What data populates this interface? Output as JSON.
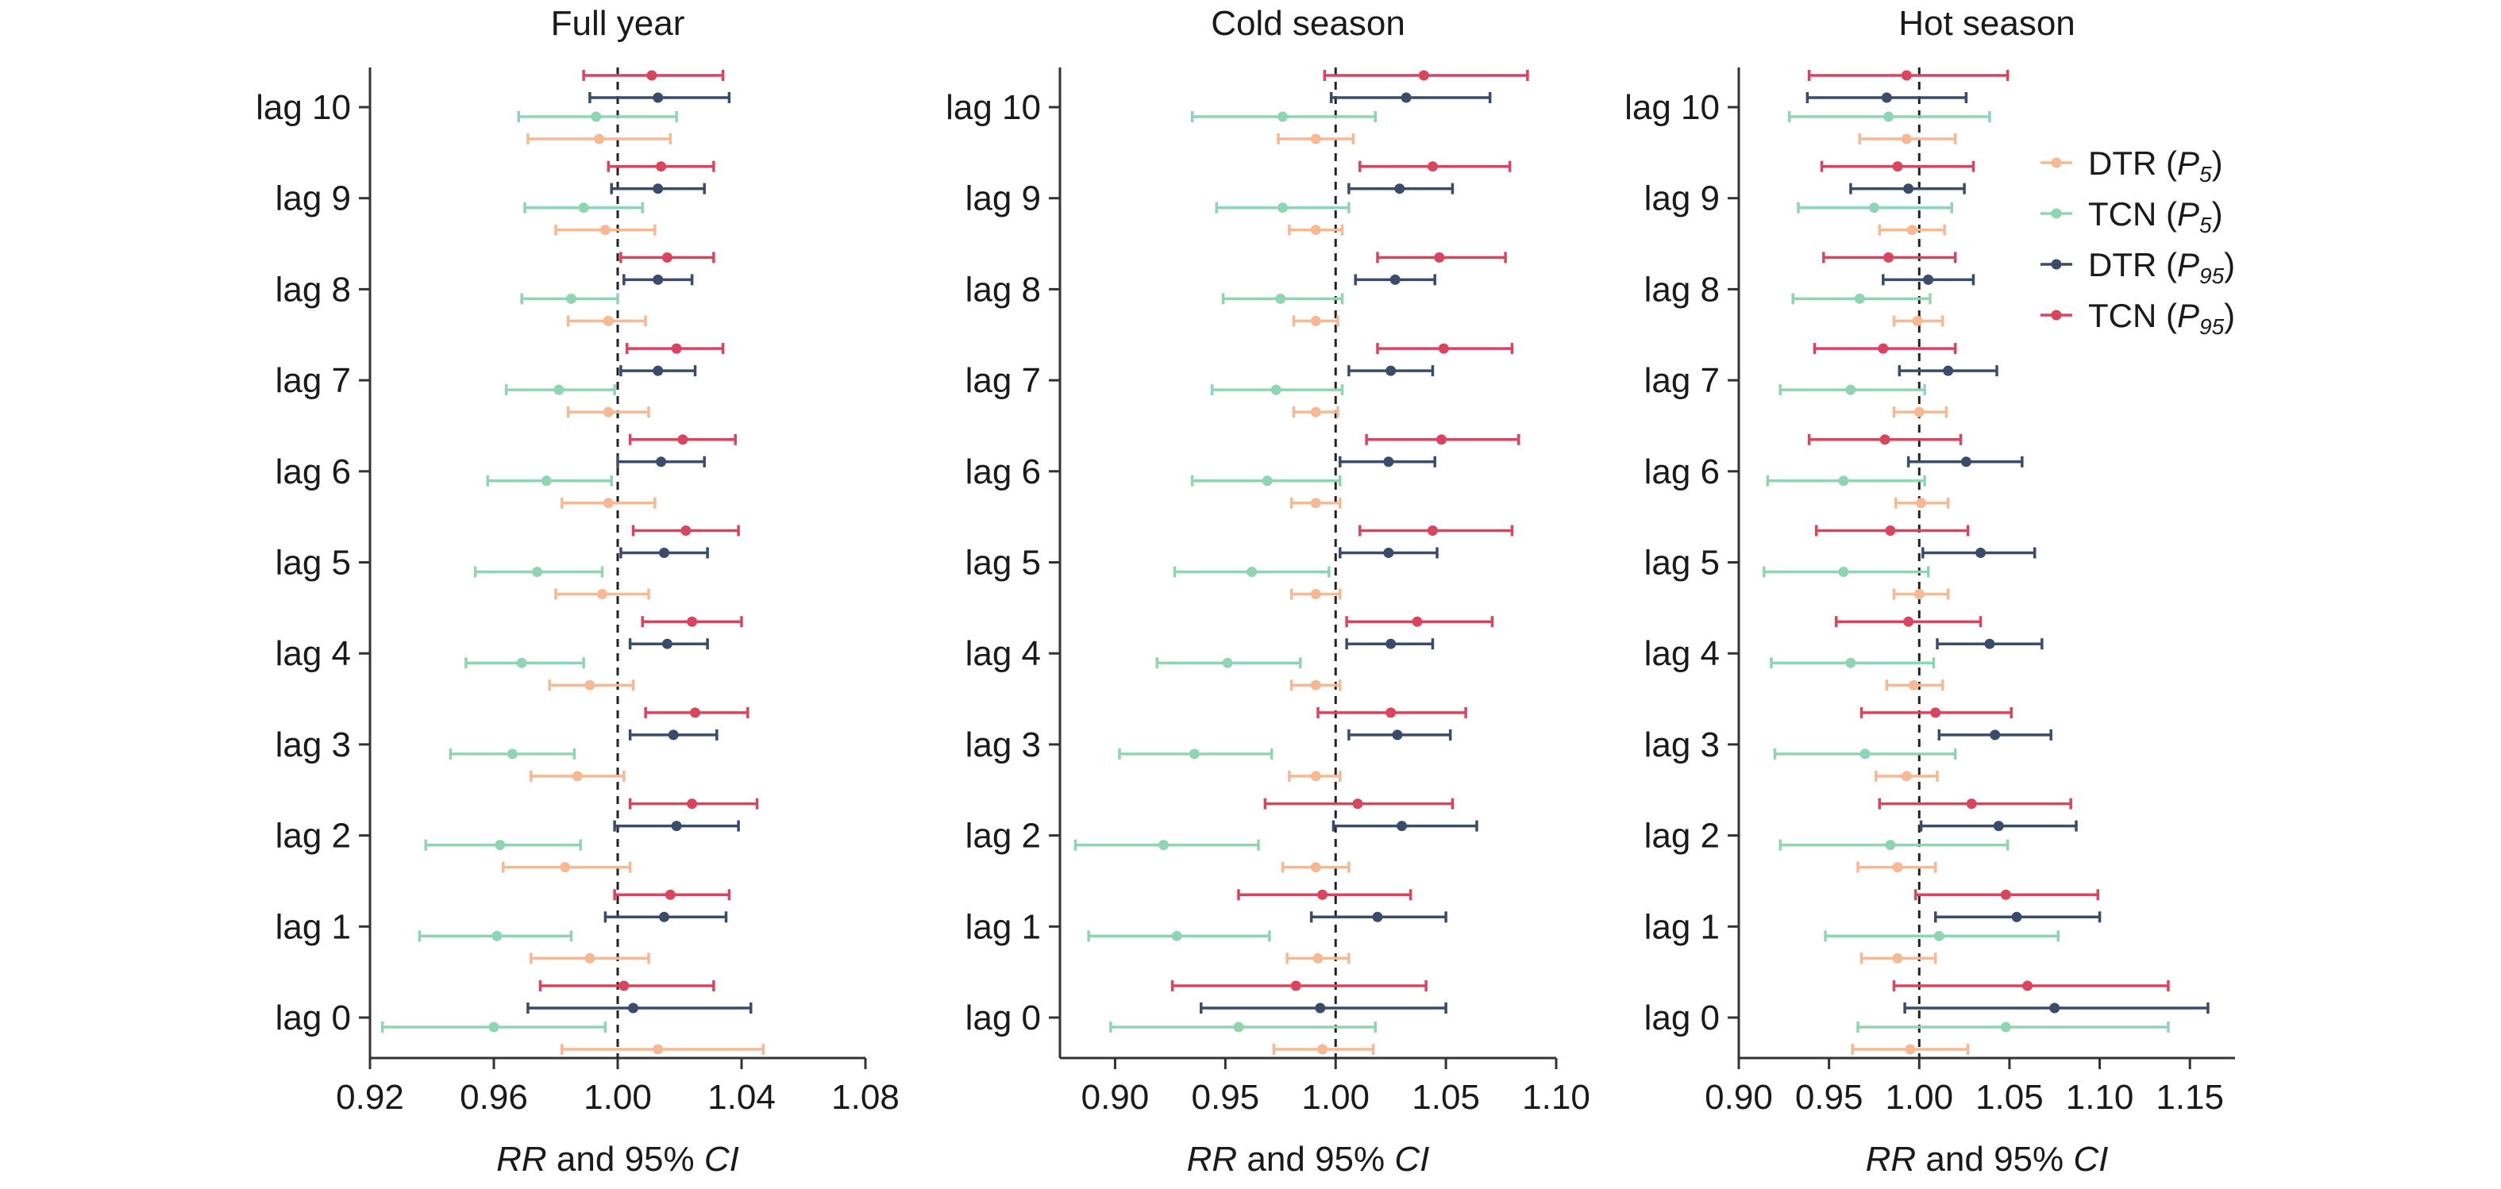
{
  "legend": {
    "placement": "right-of-last-panel",
    "entries": [
      {
        "key": "dtr_p5",
        "label": "DTR",
        "sub": "5",
        "color": "#f5b994"
      },
      {
        "key": "tcn_p5",
        "label": "TCN",
        "sub": "5",
        "color": "#8fd5b4"
      },
      {
        "key": "dtr_p95",
        "label": "DTR",
        "sub": "95",
        "color": "#3b4c6b"
      },
      {
        "key": "tcn_p95",
        "label": "TCN",
        "sub": "95",
        "color": "#d9445e"
      }
    ]
  },
  "axis_text": {
    "rr": "RR",
    "and": " and 95% ",
    "ci": "CI"
  },
  "chart_data": [
    {
      "type": "forest",
      "title": "Full year",
      "reference": 1.0,
      "xlim": [
        0.92,
        1.08
      ],
      "xticks": [
        0.92,
        0.96,
        1.0,
        1.04,
        1.08
      ],
      "tick_decimals": 2,
      "categories": [
        "lag 0",
        "lag 1",
        "lag 2",
        "lag 3",
        "lag 4",
        "lag 5",
        "lag 6",
        "lag 7",
        "lag 8",
        "lag 9",
        "lag 10"
      ],
      "series": [
        {
          "key": "dtr_p5",
          "est": [
            1.013,
            0.991,
            0.983,
            0.987,
            0.991,
            0.995,
            0.997,
            0.997,
            0.997,
            0.996,
            0.994
          ],
          "lo": [
            0.982,
            0.972,
            0.963,
            0.972,
            0.978,
            0.98,
            0.982,
            0.984,
            0.984,
            0.98,
            0.971
          ],
          "hi": [
            1.047,
            1.01,
            1.004,
            1.002,
            1.005,
            1.01,
            1.012,
            1.01,
            1.009,
            1.012,
            1.017
          ]
        },
        {
          "key": "tcn_p5",
          "est": [
            0.96,
            0.961,
            0.962,
            0.966,
            0.969,
            0.974,
            0.977,
            0.981,
            0.985,
            0.989,
            0.993
          ],
          "lo": [
            0.924,
            0.936,
            0.938,
            0.946,
            0.951,
            0.954,
            0.958,
            0.964,
            0.969,
            0.97,
            0.968
          ],
          "hi": [
            0.996,
            0.985,
            0.988,
            0.986,
            0.989,
            0.995,
            0.998,
            0.999,
            1.0,
            1.008,
            1.019
          ]
        },
        {
          "key": "dtr_p95",
          "est": [
            1.005,
            1.015,
            1.019,
            1.018,
            1.016,
            1.015,
            1.014,
            1.013,
            1.013,
            1.013,
            1.013
          ],
          "lo": [
            0.971,
            0.996,
            0.999,
            1.004,
            1.004,
            1.001,
            1.0,
            1.001,
            1.002,
            0.998,
            0.991
          ],
          "hi": [
            1.043,
            1.035,
            1.039,
            1.032,
            1.029,
            1.029,
            1.028,
            1.025,
            1.024,
            1.028,
            1.036
          ]
        },
        {
          "key": "tcn_p95",
          "est": [
            1.002,
            1.017,
            1.024,
            1.025,
            1.024,
            1.022,
            1.021,
            1.019,
            1.016,
            1.014,
            1.011
          ],
          "lo": [
            0.975,
            0.999,
            1.004,
            1.009,
            1.008,
            1.005,
            1.004,
            1.003,
            1.001,
            0.997,
            0.989
          ],
          "hi": [
            1.031,
            1.036,
            1.045,
            1.042,
            1.04,
            1.039,
            1.038,
            1.034,
            1.031,
            1.031,
            1.034
          ]
        }
      ]
    },
    {
      "type": "forest",
      "title": "Cold season",
      "reference": 1.0,
      "xlim": [
        0.875,
        1.1
      ],
      "xticks": [
        0.9,
        0.95,
        1.0,
        1.05,
        1.1
      ],
      "tick_decimals": 2,
      "categories": [
        "lag 0",
        "lag 1",
        "lag 2",
        "lag 3",
        "lag 4",
        "lag 5",
        "lag 6",
        "lag 7",
        "lag 8",
        "lag 9",
        "lag 10"
      ],
      "series": [
        {
          "key": "dtr_p5",
          "est": [
            0.994,
            0.992,
            0.991,
            0.991,
            0.991,
            0.991,
            0.991,
            0.991,
            0.991,
            0.991,
            0.991
          ],
          "lo": [
            0.972,
            0.978,
            0.976,
            0.979,
            0.98,
            0.98,
            0.98,
            0.981,
            0.981,
            0.979,
            0.974
          ],
          "hi": [
            1.017,
            1.006,
            1.006,
            1.002,
            1.002,
            1.002,
            1.002,
            1.001,
            1.001,
            1.003,
            1.008
          ]
        },
        {
          "key": "tcn_p5",
          "est": [
            0.956,
            0.928,
            0.922,
            0.936,
            0.951,
            0.962,
            0.969,
            0.973,
            0.975,
            0.976,
            0.976
          ],
          "lo": [
            0.898,
            0.888,
            0.882,
            0.902,
            0.919,
            0.927,
            0.935,
            0.944,
            0.949,
            0.946,
            0.935
          ],
          "hi": [
            1.018,
            0.97,
            0.965,
            0.971,
            0.984,
            0.997,
            1.002,
            1.003,
            1.003,
            1.006,
            1.018
          ]
        },
        {
          "key": "dtr_p95",
          "est": [
            0.993,
            1.019,
            1.03,
            1.028,
            1.025,
            1.024,
            1.024,
            1.025,
            1.027,
            1.029,
            1.032
          ],
          "lo": [
            0.939,
            0.989,
            0.999,
            1.006,
            1.005,
            1.002,
            1.002,
            1.006,
            1.009,
            1.006,
            0.998
          ],
          "hi": [
            1.05,
            1.05,
            1.064,
            1.052,
            1.044,
            1.046,
            1.045,
            1.044,
            1.045,
            1.053,
            1.07
          ]
        },
        {
          "key": "tcn_p95",
          "est": [
            0.982,
            0.994,
            1.01,
            1.025,
            1.037,
            1.044,
            1.048,
            1.049,
            1.047,
            1.044,
            1.04
          ],
          "lo": [
            0.926,
            0.956,
            0.968,
            0.992,
            1.005,
            1.011,
            1.014,
            1.019,
            1.019,
            1.011,
            0.995
          ],
          "hi": [
            1.041,
            1.034,
            1.053,
            1.059,
            1.071,
            1.08,
            1.083,
            1.08,
            1.077,
            1.079,
            1.087
          ]
        }
      ]
    },
    {
      "type": "forest",
      "title": "Hot season",
      "reference": 1.0,
      "xlim": [
        0.9,
        1.175
      ],
      "xticks": [
        0.9,
        0.95,
        1.0,
        1.05,
        1.1,
        1.15
      ],
      "tick_decimals": 2,
      "categories": [
        "lag 0",
        "lag 1",
        "lag 2",
        "lag 3",
        "lag 4",
        "lag 5",
        "lag 6",
        "lag 7",
        "lag 8",
        "lag 9",
        "lag 10"
      ],
      "series": [
        {
          "key": "dtr_p5",
          "est": [
            0.995,
            0.988,
            0.988,
            0.993,
            0.997,
            1.0,
            1.001,
            1.0,
            0.999,
            0.996,
            0.993
          ],
          "lo": [
            0.963,
            0.968,
            0.966,
            0.976,
            0.982,
            0.986,
            0.987,
            0.986,
            0.986,
            0.978,
            0.967
          ],
          "hi": [
            1.027,
            1.009,
            1.009,
            1.01,
            1.013,
            1.016,
            1.016,
            1.015,
            1.013,
            1.014,
            1.02
          ]
        },
        {
          "key": "tcn_p5",
          "est": [
            1.048,
            1.011,
            0.984,
            0.97,
            0.962,
            0.958,
            0.958,
            0.962,
            0.967,
            0.975,
            0.983
          ],
          "lo": [
            0.966,
            0.948,
            0.923,
            0.92,
            0.918,
            0.914,
            0.916,
            0.923,
            0.93,
            0.933,
            0.928
          ],
          "hi": [
            1.138,
            1.077,
            1.049,
            1.02,
            1.008,
            1.005,
            1.003,
            1.003,
            1.006,
            1.018,
            1.039
          ]
        },
        {
          "key": "dtr_p95",
          "est": [
            1.075,
            1.054,
            1.044,
            1.042,
            1.039,
            1.034,
            1.026,
            1.016,
            1.005,
            0.994,
            0.982
          ],
          "lo": [
            0.992,
            1.009,
            1.001,
            1.011,
            1.01,
            1.002,
            0.994,
            0.989,
            0.98,
            0.962,
            0.938
          ],
          "hi": [
            1.16,
            1.1,
            1.087,
            1.073,
            1.068,
            1.064,
            1.057,
            1.043,
            1.03,
            1.025,
            1.026
          ]
        },
        {
          "key": "tcn_p95",
          "est": [
            1.06,
            1.048,
            1.029,
            1.009,
            0.994,
            0.984,
            0.981,
            0.98,
            0.983,
            0.988,
            0.993
          ],
          "lo": [
            0.986,
            0.998,
            0.978,
            0.968,
            0.954,
            0.943,
            0.939,
            0.942,
            0.947,
            0.946,
            0.939
          ],
          "hi": [
            1.138,
            1.099,
            1.084,
            1.051,
            1.034,
            1.027,
            1.023,
            1.02,
            1.02,
            1.03,
            1.049
          ]
        }
      ]
    }
  ]
}
